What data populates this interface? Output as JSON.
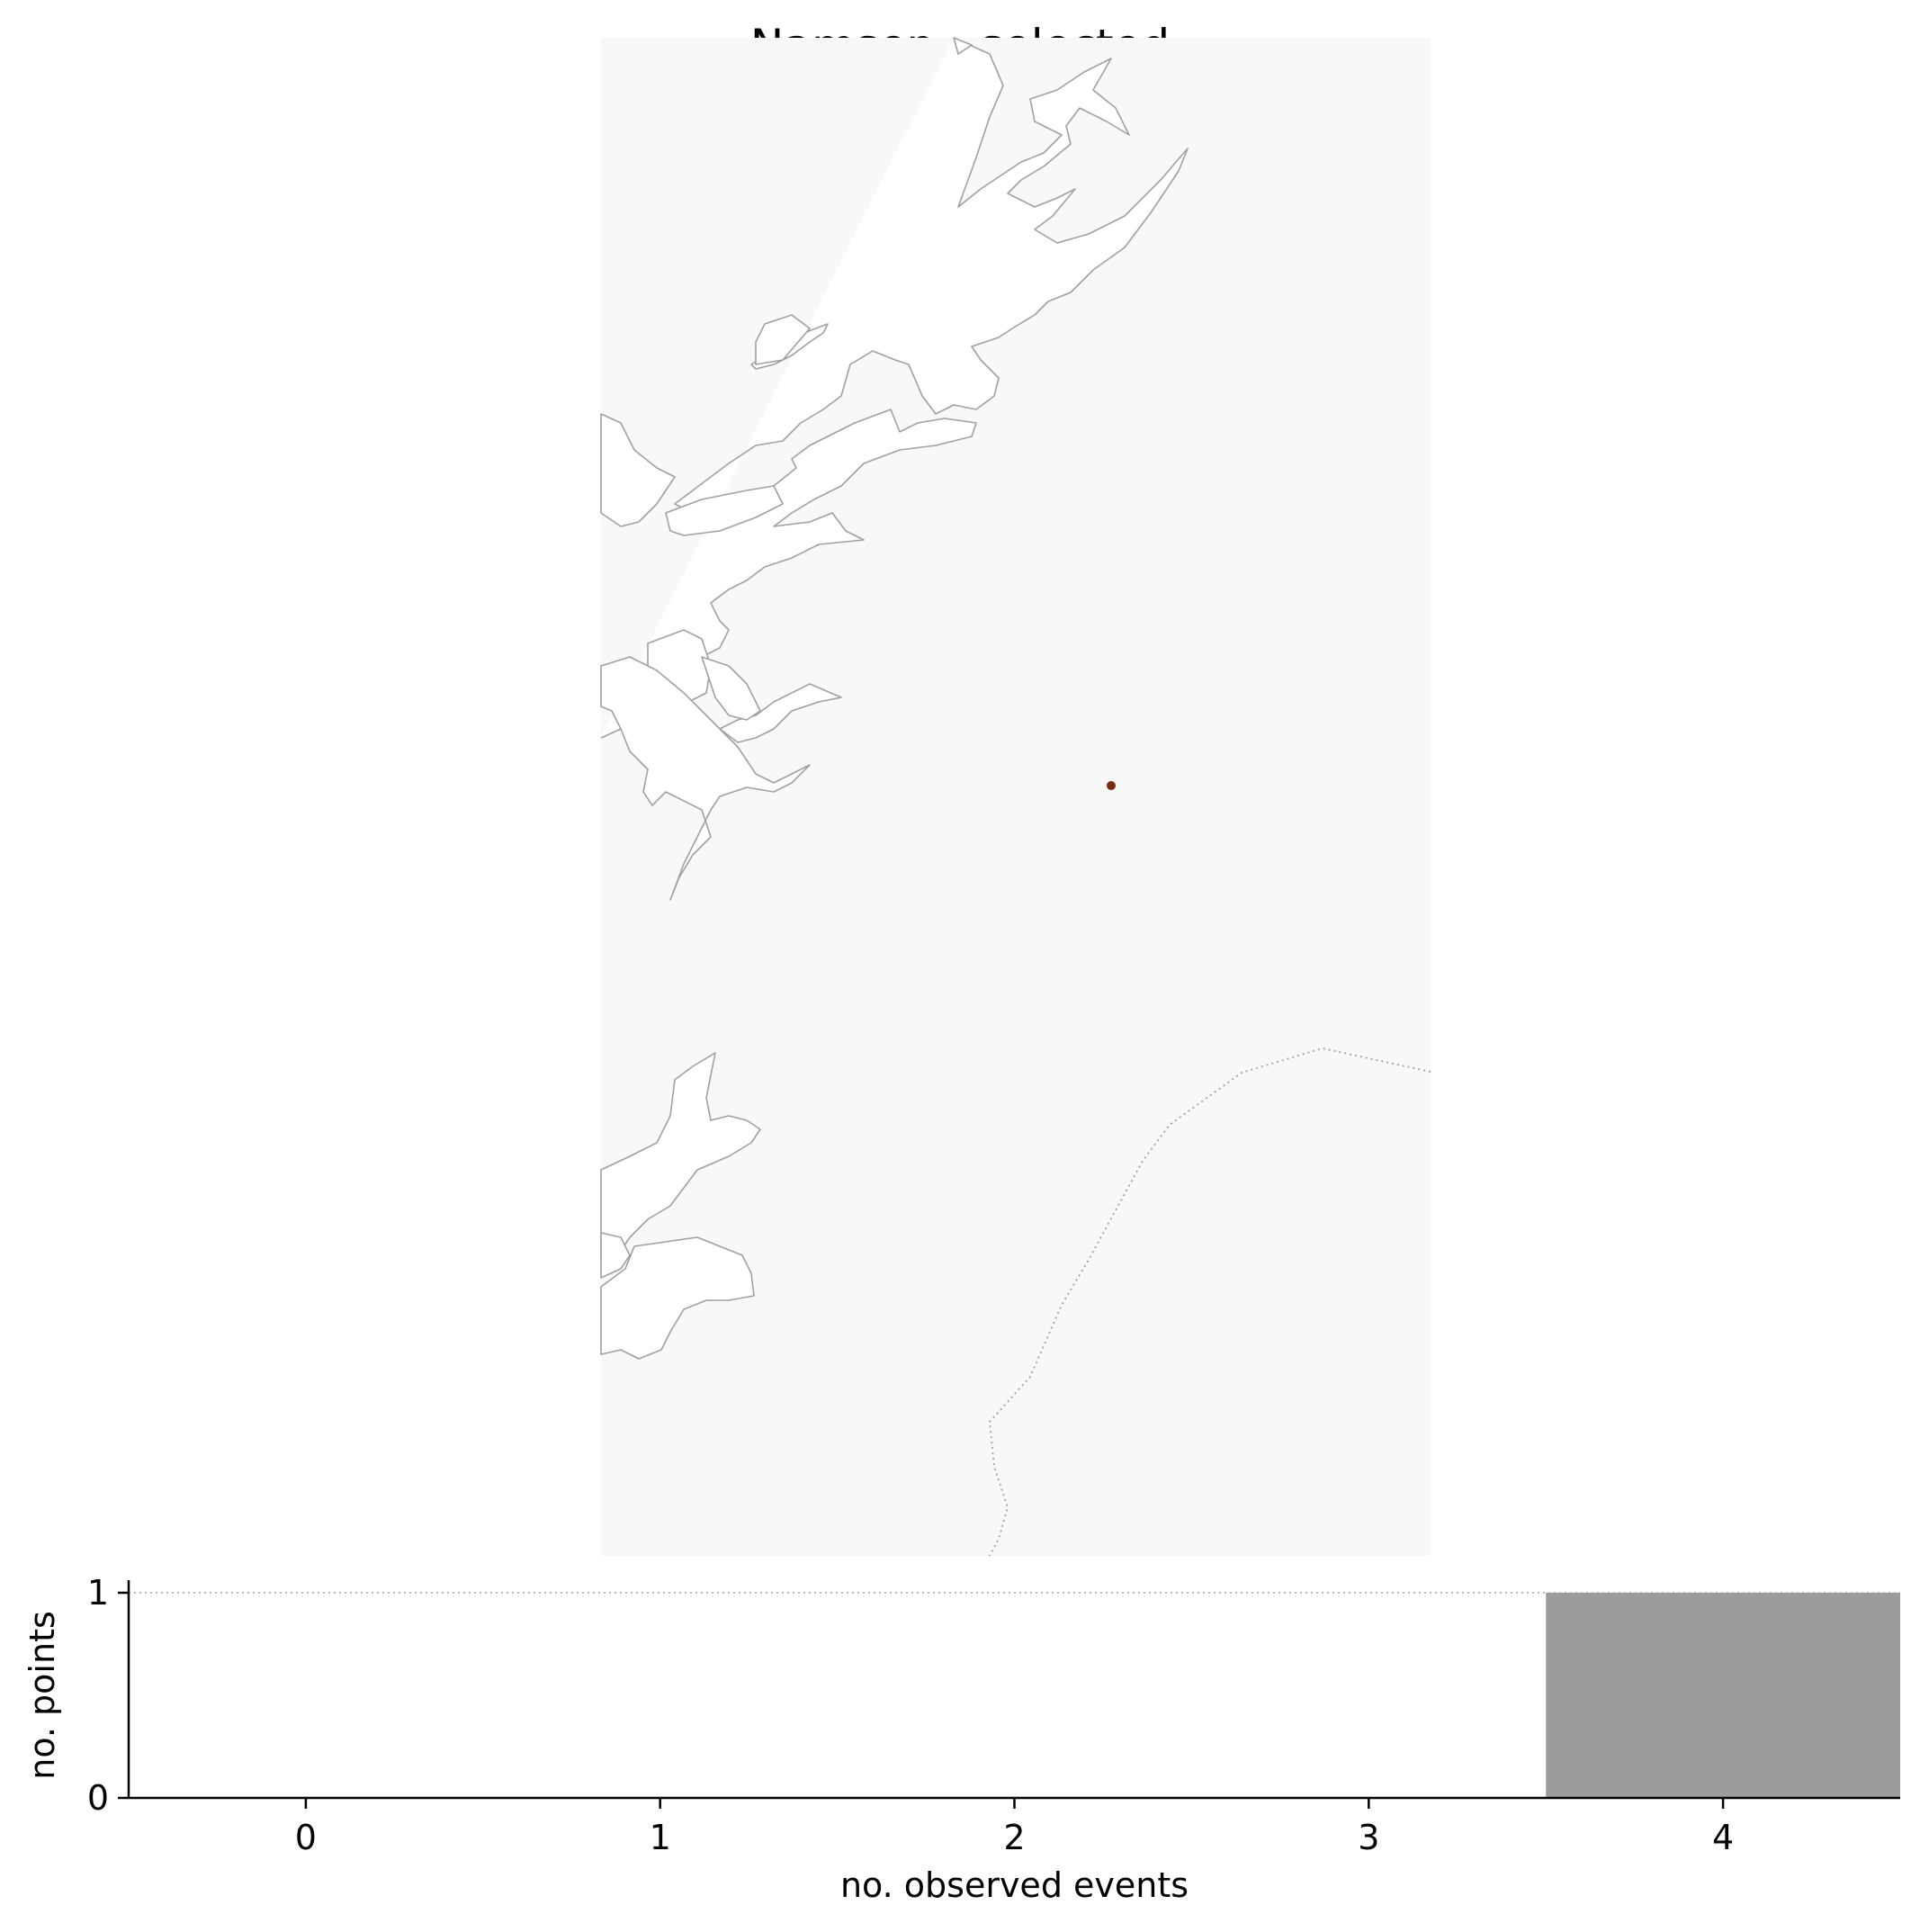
{
  "title": "Namsen - selected",
  "map": {
    "background_color": "#f8f8f8",
    "coast_color": "#a0a0a0",
    "border_color": "#a0a0a0",
    "point_color": "#7a2e10",
    "point_count": 1
  },
  "chart_data": {
    "type": "bar",
    "categories": [
      "0",
      "1",
      "2",
      "3",
      "4"
    ],
    "x": [
      0,
      1,
      2,
      3,
      4
    ],
    "values": [
      0,
      0,
      0,
      0,
      1
    ],
    "xlabel": "no. observed events",
    "ylabel": "no. points",
    "xlim": [
      -0.5,
      4.5
    ],
    "ylim": [
      0,
      1
    ],
    "yticks": [
      0,
      1
    ],
    "xticks": [
      0,
      1,
      2,
      3,
      4
    ],
    "reference_line": 1,
    "bar_color": "#9c9c9c",
    "grid": false,
    "legend": "none"
  }
}
